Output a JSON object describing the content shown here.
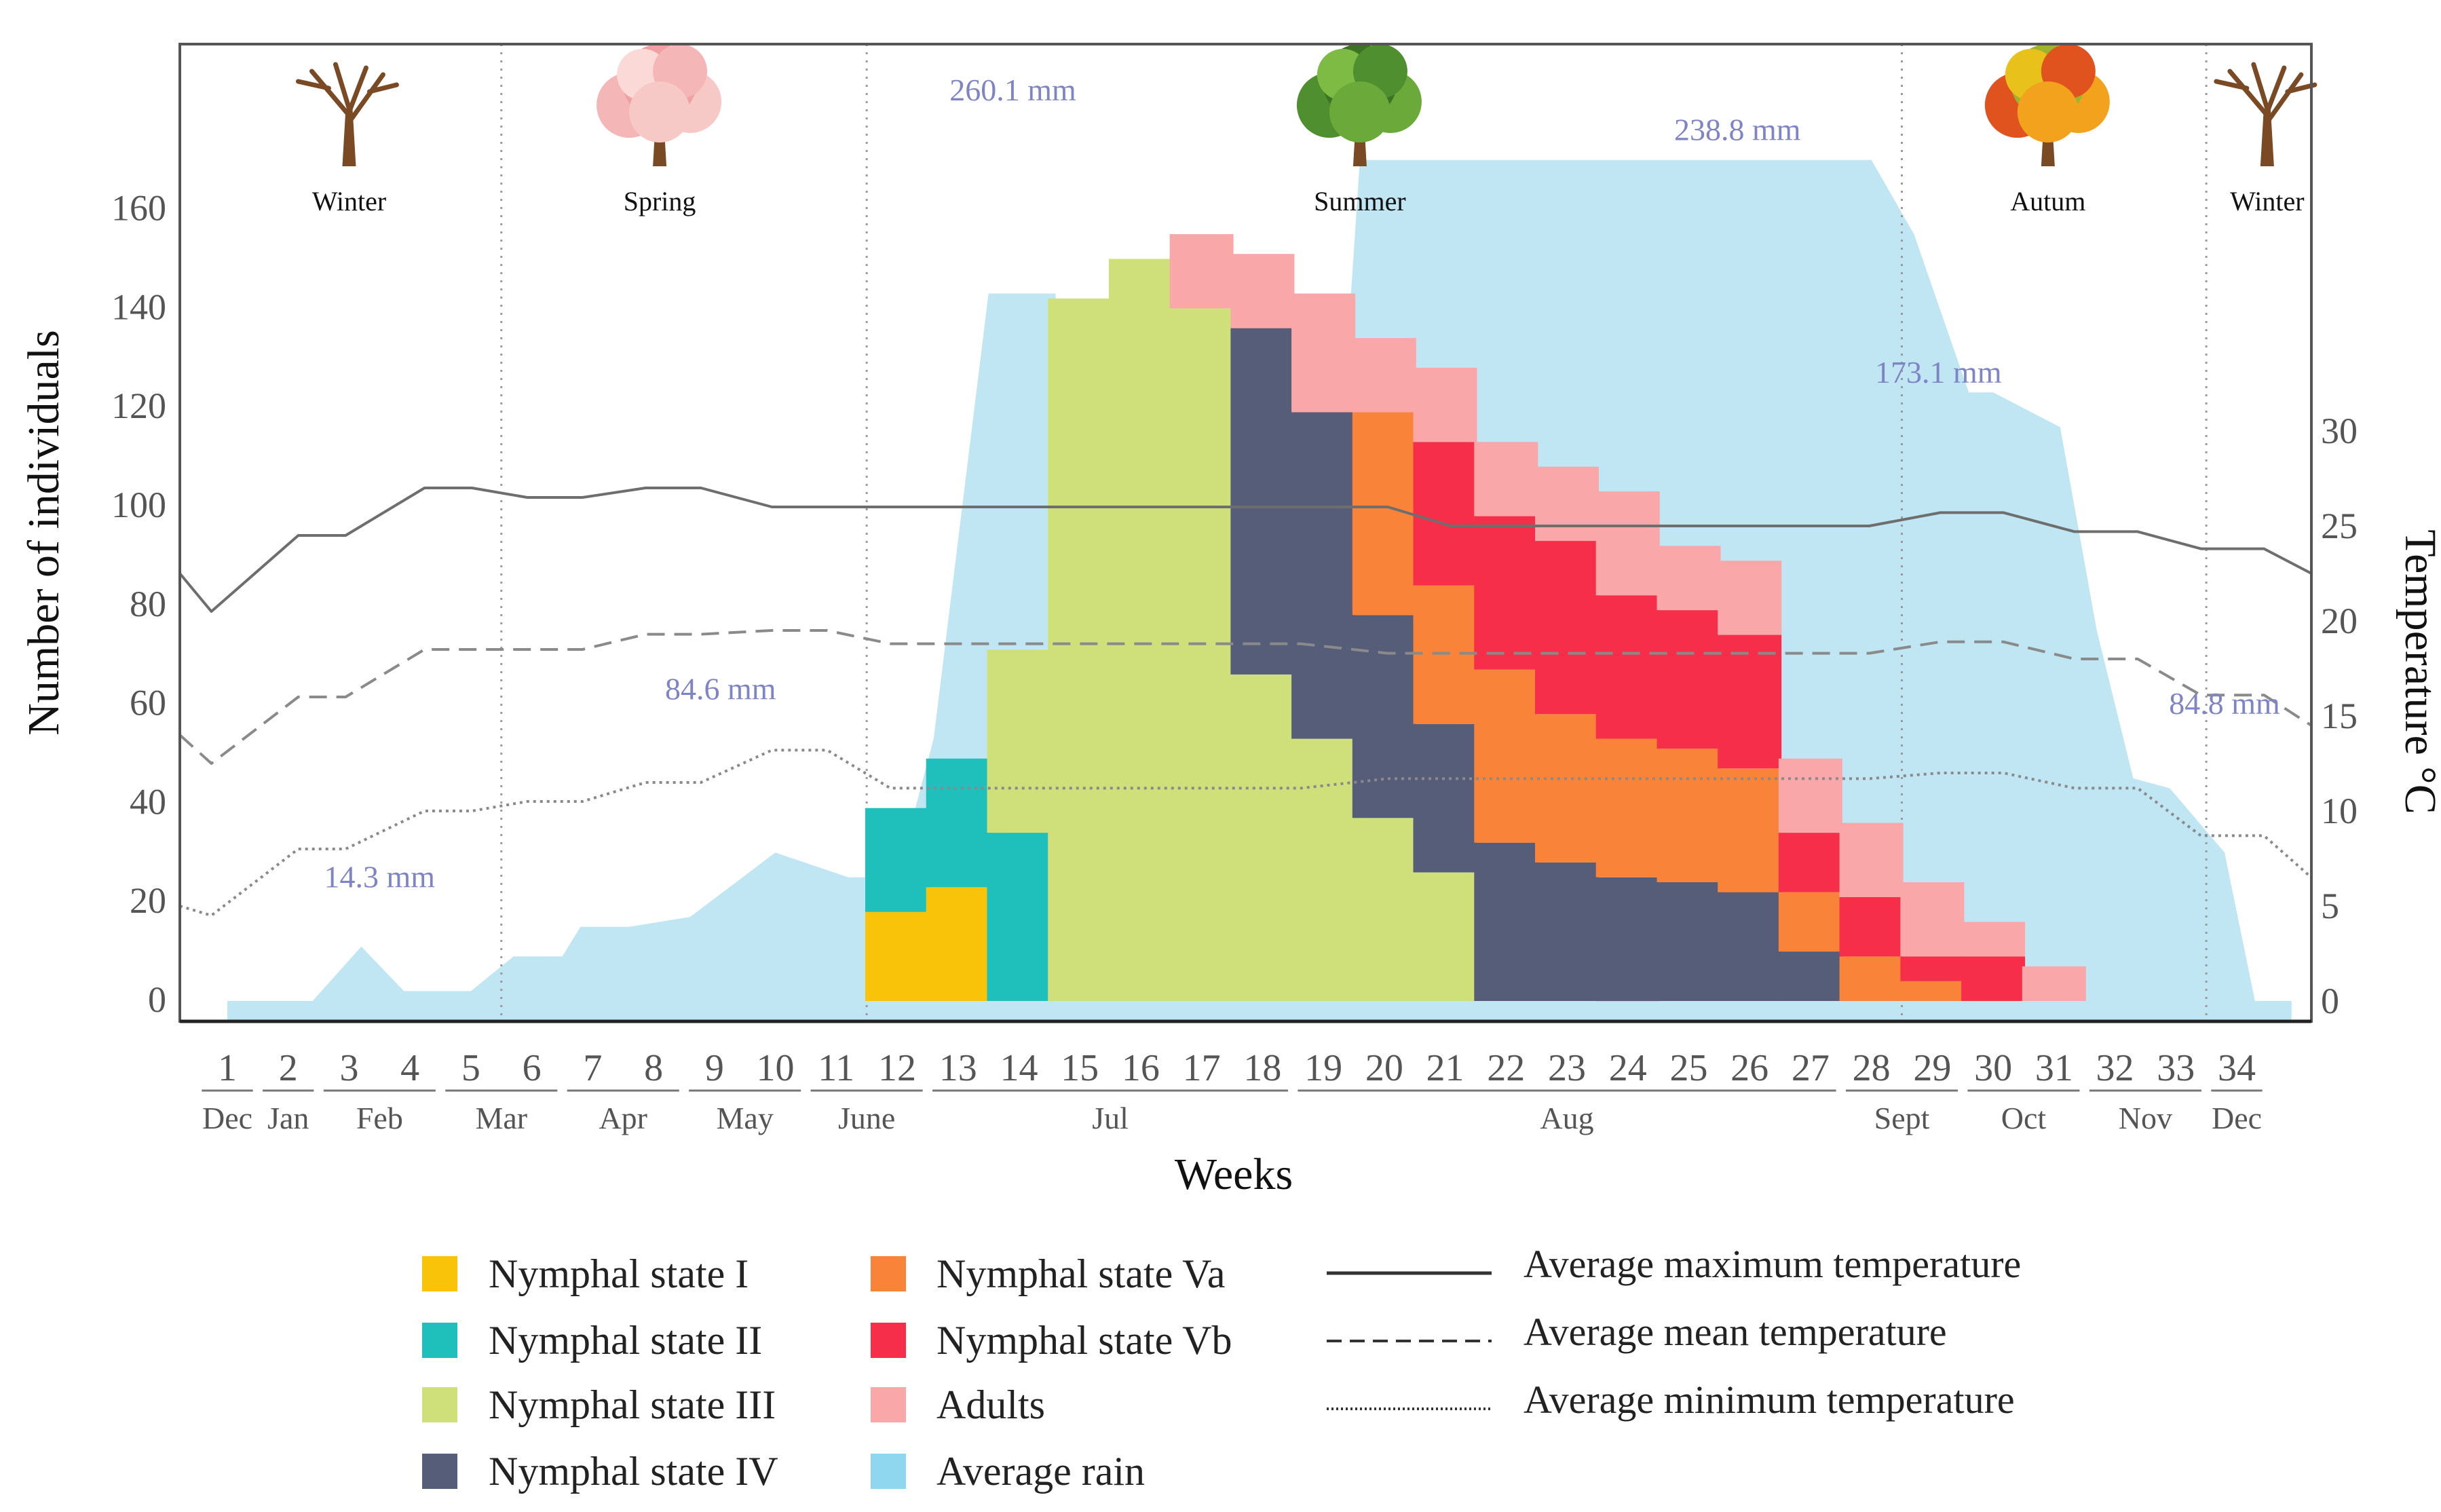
{
  "chart_data": {
    "type": "bar",
    "stacked": true,
    "xlabel": "Weeks",
    "ylabel": "Number of individuals",
    "y2label": "Temperature °C",
    "ylim": [
      0,
      200
    ],
    "yticks": [
      0,
      20,
      40,
      60,
      80,
      100,
      120,
      140,
      160
    ],
    "y2lim": [
      0,
      51.7
    ],
    "y2ticks": [
      0,
      5,
      10,
      15,
      20,
      25,
      30
    ],
    "weeks": [
      "1",
      "2",
      "3",
      "4",
      "5",
      "6",
      "7",
      "8",
      "9",
      "10",
      "11",
      "12",
      "13",
      "14",
      "15",
      "16",
      "17",
      "18",
      "19",
      "20",
      "21",
      "22",
      "23",
      "24",
      "25",
      "26",
      "27",
      "28",
      "29",
      "30",
      "31",
      "32",
      "33",
      "34"
    ],
    "months": [
      {
        "label": "Dec",
        "weeks": [
          1,
          1
        ]
      },
      {
        "label": "Jan",
        "weeks": [
          2,
          2
        ]
      },
      {
        "label": "Feb",
        "weeks": [
          3,
          4
        ]
      },
      {
        "label": "Mar",
        "weeks": [
          5,
          6
        ]
      },
      {
        "label": "Apr",
        "weeks": [
          7,
          8
        ]
      },
      {
        "label": "May",
        "weeks": [
          9,
          10
        ]
      },
      {
        "label": "June",
        "weeks": [
          11,
          12
        ]
      },
      {
        "label": "Jul",
        "weeks": [
          13,
          18
        ]
      },
      {
        "label": "Aug",
        "weeks": [
          19,
          27
        ]
      },
      {
        "label": "Sept",
        "weeks": [
          28,
          29
        ]
      },
      {
        "label": "Oct",
        "weeks": [
          30,
          31
        ]
      },
      {
        "label": "Nov",
        "weeks": [
          32,
          33
        ]
      },
      {
        "label": "Dec",
        "weeks": [
          34,
          34
        ]
      }
    ],
    "season_boundaries": [
      5.5,
      11.5,
      28.5,
      33.5
    ],
    "seasons": [
      {
        "label": "Winter",
        "week": 3.0,
        "tree": "bare"
      },
      {
        "label": "Spring",
        "week": 8.1,
        "tree": "blossom"
      },
      {
        "label": "Summer",
        "week": 19.6,
        "tree": "green"
      },
      {
        "label": "Autum",
        "week": 30.9,
        "tree": "autumn"
      },
      {
        "label": "Winter",
        "week": 34.5,
        "tree": "bare"
      }
    ],
    "series": [
      {
        "name": "Nymphal state I",
        "color": "#f9c30a",
        "values": [
          0,
          0,
          0,
          0,
          0,
          0,
          0,
          0,
          0,
          0,
          0,
          18,
          23,
          0,
          0,
          0,
          0,
          0,
          0,
          0,
          0,
          0,
          0,
          0,
          0,
          0,
          0,
          0,
          0,
          0,
          0,
          0,
          0,
          0
        ]
      },
      {
        "name": "Nymphal state II",
        "color": "#1fbfbb",
        "values": [
          0,
          0,
          0,
          0,
          0,
          0,
          0,
          0,
          0,
          0,
          0,
          21,
          26,
          34,
          0,
          0,
          0,
          0,
          0,
          0,
          0,
          0,
          0,
          0,
          0,
          0,
          0,
          0,
          0,
          0,
          0,
          0,
          0,
          0
        ]
      },
      {
        "name": "Nymphal state III",
        "color": "#cfe07a",
        "values": [
          0,
          0,
          0,
          0,
          0,
          0,
          0,
          0,
          0,
          0,
          0,
          0,
          0,
          37,
          142,
          150,
          140,
          66,
          53,
          37,
          26,
          0,
          0,
          0,
          0,
          0,
          0,
          0,
          0,
          0,
          0,
          0,
          0,
          0
        ]
      },
      {
        "name": "Nymphal state IV",
        "color": "#565d79",
        "values": [
          0,
          0,
          0,
          0,
          0,
          0,
          0,
          0,
          0,
          0,
          0,
          0,
          0,
          0,
          0,
          0,
          0,
          70,
          66,
          41,
          30,
          32,
          28,
          25,
          24,
          22,
          10,
          0,
          0,
          0,
          0,
          0,
          0,
          0
        ]
      },
      {
        "name": "Nymphal state Va",
        "color": "#f98439",
        "values": [
          0,
          0,
          0,
          0,
          0,
          0,
          0,
          0,
          0,
          0,
          0,
          0,
          0,
          0,
          0,
          0,
          0,
          0,
          0,
          41,
          28,
          35,
          30,
          28,
          27,
          25,
          12,
          9,
          4,
          0,
          0,
          0,
          0,
          0
        ]
      },
      {
        "name": "Nymphal state Vb",
        "color": "#f72e4a",
        "values": [
          0,
          0,
          0,
          0,
          0,
          0,
          0,
          0,
          0,
          0,
          0,
          0,
          0,
          0,
          0,
          0,
          0,
          0,
          0,
          0,
          29,
          31,
          35,
          29,
          28,
          27,
          12,
          12,
          5,
          9,
          0,
          0,
          0,
          0
        ]
      },
      {
        "name": "Adults",
        "color": "#f9a7a9",
        "values": [
          0,
          0,
          0,
          0,
          0,
          0,
          0,
          0,
          0,
          0,
          0,
          0,
          0,
          0,
          0,
          0,
          15,
          15,
          24,
          15,
          15,
          15,
          15,
          21,
          13,
          15,
          15,
          15,
          15,
          7,
          7,
          0,
          0,
          0
        ]
      }
    ],
    "rain": {
      "name": "Average rain",
      "color": "#bfe6f2",
      "points": [
        [
          1,
          0
        ],
        [
          2,
          0
        ],
        [
          2.4,
          0
        ],
        [
          3.2,
          11
        ],
        [
          3.9,
          2
        ],
        [
          5,
          2
        ],
        [
          5.2,
          4
        ],
        [
          5.7,
          9
        ],
        [
          6.5,
          9
        ],
        [
          6.8,
          15
        ],
        [
          7.6,
          15
        ],
        [
          8.6,
          17
        ],
        [
          10,
          30
        ],
        [
          11.2,
          25
        ],
        [
          12,
          25
        ],
        [
          12.6,
          53
        ],
        [
          13.5,
          143
        ],
        [
          14.6,
          143
        ],
        [
          14.9,
          60
        ],
        [
          15.5,
          52
        ],
        [
          16.5,
          52
        ],
        [
          17.5,
          52
        ],
        [
          18.5,
          52
        ],
        [
          19.2,
          96
        ],
        [
          19.6,
          170
        ],
        [
          21,
          170
        ],
        [
          28,
          170
        ],
        [
          28.7,
          155
        ],
        [
          29.6,
          123
        ],
        [
          30,
          123
        ],
        [
          31.1,
          116
        ],
        [
          31.7,
          75
        ],
        [
          32.3,
          45
        ],
        [
          32.9,
          43
        ],
        [
          33.8,
          30
        ],
        [
          34.3,
          0
        ],
        [
          34.9,
          0
        ]
      ],
      "annotations": [
        {
          "text": "14.3 mm",
          "week": 3.5,
          "value": 23
        },
        {
          "text": "84.6 mm",
          "week": 9.1,
          "value": 61
        },
        {
          "text": "260.1 mm",
          "week": 13.9,
          "value": 182
        },
        {
          "text": "238.8 mm",
          "week": 25.8,
          "value": 174
        },
        {
          "text": "173.1 mm",
          "week": 29.1,
          "value": 125
        },
        {
          "text": "84.8 mm",
          "week": 33.8,
          "value": 58
        }
      ]
    },
    "temperature": [
      {
        "name": "Average maximum temperature",
        "style": "solid",
        "color": "#6e6e6e",
        "points": [
          [
            0,
            22.5
          ],
          [
            0.4,
            20.5
          ],
          [
            1.5,
            24.5
          ],
          [
            2.1,
            24.5
          ],
          [
            3.1,
            27
          ],
          [
            3.7,
            27
          ],
          [
            4.4,
            26.5
          ],
          [
            5.1,
            26.5
          ],
          [
            5.9,
            27
          ],
          [
            6.6,
            27
          ],
          [
            7.5,
            26
          ],
          [
            9.2,
            26
          ],
          [
            10.2,
            26
          ],
          [
            11.1,
            26
          ],
          [
            12.7,
            26
          ],
          [
            14.2,
            26
          ],
          [
            15.3,
            26
          ],
          [
            16.1,
            25
          ],
          [
            17.2,
            25
          ],
          [
            20.5,
            25
          ],
          [
            21.4,
            25
          ],
          [
            22.3,
            25.7
          ],
          [
            23.1,
            25.7
          ],
          [
            24,
            24.7
          ],
          [
            24.8,
            24.7
          ],
          [
            25.6,
            23.8
          ],
          [
            26.4,
            23.8
          ],
          [
            27,
            22.5
          ]
        ]
      },
      {
        "name": "Average mean temperature",
        "style": "dashed",
        "color": "#8a8a8a",
        "points": [
          [
            0,
            14
          ],
          [
            0.4,
            12.5
          ],
          [
            1.5,
            16
          ],
          [
            2.1,
            16
          ],
          [
            3.1,
            18.5
          ],
          [
            3.7,
            18.5
          ],
          [
            4.4,
            18.5
          ],
          [
            5.1,
            18.5
          ],
          [
            5.9,
            19.3
          ],
          [
            6.6,
            19.3
          ],
          [
            7.5,
            19.5
          ],
          [
            8.2,
            19.5
          ],
          [
            9,
            18.8
          ],
          [
            10,
            18.8
          ],
          [
            11.1,
            18.8
          ],
          [
            12.7,
            18.8
          ],
          [
            13.7,
            18.8
          ],
          [
            14.2,
            18.8
          ],
          [
            15.3,
            18.3
          ],
          [
            16.1,
            18.3
          ],
          [
            17.2,
            18.3
          ],
          [
            20.5,
            18.3
          ],
          [
            21.4,
            18.3
          ],
          [
            22.3,
            18.9
          ],
          [
            23.1,
            18.9
          ],
          [
            24,
            18
          ],
          [
            24.8,
            18
          ],
          [
            25.6,
            16.1
          ],
          [
            26.4,
            16.1
          ],
          [
            27,
            14.5
          ]
        ]
      },
      {
        "name": "Average minimum temperature",
        "style": "dotted",
        "color": "#8a8a8a",
        "points": [
          [
            0,
            5
          ],
          [
            0.4,
            4.5
          ],
          [
            1.5,
            8
          ],
          [
            2.1,
            8
          ],
          [
            3.1,
            10
          ],
          [
            3.7,
            10
          ],
          [
            4.4,
            10.5
          ],
          [
            5.1,
            10.5
          ],
          [
            5.9,
            11.5
          ],
          [
            6.6,
            11.5
          ],
          [
            7.5,
            13.2
          ],
          [
            8.2,
            13.2
          ],
          [
            9,
            11.2
          ],
          [
            10,
            11.2
          ],
          [
            11.1,
            11.2
          ],
          [
            12.7,
            11.2
          ],
          [
            13.7,
            11.2
          ],
          [
            14.2,
            11.2
          ],
          [
            15.3,
            11.7
          ],
          [
            16.1,
            11.7
          ],
          [
            17.2,
            11.7
          ],
          [
            20.5,
            11.7
          ],
          [
            21.4,
            11.7
          ],
          [
            22.3,
            12
          ],
          [
            23.1,
            12
          ],
          [
            24,
            11.2
          ],
          [
            24.8,
            11.2
          ],
          [
            25.6,
            8.7
          ],
          [
            26.4,
            8.7
          ],
          [
            27,
            6.5
          ]
        ]
      }
    ],
    "legend": [
      {
        "label": "Nymphal state I",
        "kind": "swatch",
        "color": "#f9c30a"
      },
      {
        "label": "Nymphal state II",
        "kind": "swatch",
        "color": "#1fbfbb"
      },
      {
        "label": "Nymphal state III",
        "kind": "swatch",
        "color": "#cfe07a"
      },
      {
        "label": "Nymphal state IV",
        "kind": "swatch",
        "color": "#565d79"
      },
      {
        "label": "Nymphal state Va",
        "kind": "swatch",
        "color": "#f98439"
      },
      {
        "label": "Nymphal state Vb",
        "kind": "swatch",
        "color": "#f72e4a"
      },
      {
        "label": "Adults",
        "kind": "swatch",
        "color": "#f9a7a9"
      },
      {
        "label": "Average rain",
        "kind": "swatch",
        "color": "#8fd6ef"
      },
      {
        "label": "Average maximum temperature",
        "kind": "solid",
        "color": "#333333"
      },
      {
        "label": "Average mean temperature",
        "kind": "dashed",
        "color": "#333333"
      },
      {
        "label": "Average minimum temperature",
        "kind": "dotted",
        "color": "#333333"
      }
    ]
  }
}
